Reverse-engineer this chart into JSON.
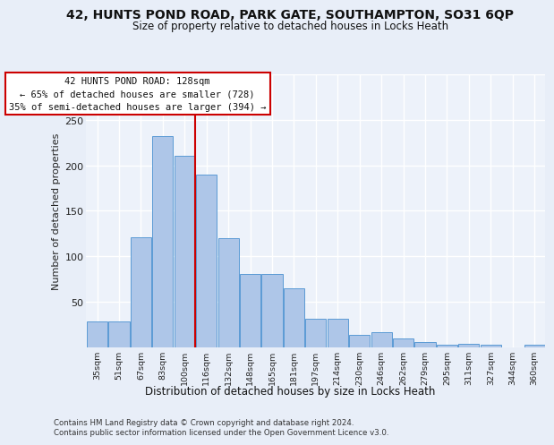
{
  "title_line1": "42, HUNTS POND ROAD, PARK GATE, SOUTHAMPTON, SO31 6QP",
  "title_line2": "Size of property relative to detached houses in Locks Heath",
  "xlabel": "Distribution of detached houses by size in Locks Heath",
  "ylabel": "Number of detached properties",
  "categories": [
    "35sqm",
    "51sqm",
    "67sqm",
    "83sqm",
    "100sqm",
    "116sqm",
    "132sqm",
    "148sqm",
    "165sqm",
    "181sqm",
    "197sqm",
    "214sqm",
    "230sqm",
    "246sqm",
    "262sqm",
    "279sqm",
    "295sqm",
    "311sqm",
    "327sqm",
    "344sqm",
    "360sqm"
  ],
  "values": [
    29,
    29,
    121,
    232,
    210,
    190,
    120,
    81,
    81,
    65,
    31,
    31,
    14,
    17,
    10,
    6,
    3,
    4,
    3,
    0,
    3
  ],
  "bar_color": "#aec6e8",
  "bar_edge_color": "#5b9bd5",
  "annotation_line1": "42 HUNTS POND ROAD: 128sqm",
  "annotation_line2": "← 65% of detached houses are smaller (728)",
  "annotation_line3": "35% of semi-detached houses are larger (394) →",
  "vline_x_index": 4.5,
  "vline_color": "#cc0000",
  "ylim": [
    0,
    300
  ],
  "yticks": [
    0,
    50,
    100,
    150,
    200,
    250,
    300
  ],
  "footnote1": "Contains HM Land Registry data © Crown copyright and database right 2024.",
  "footnote2": "Contains public sector information licensed under the Open Government Licence v3.0.",
  "bg_color": "#e8eef8",
  "plot_bg_color": "#edf2fa",
  "grid_color": "#ffffff",
  "annotation_box_color": "#ffffff",
  "annotation_box_edge": "#cc0000"
}
